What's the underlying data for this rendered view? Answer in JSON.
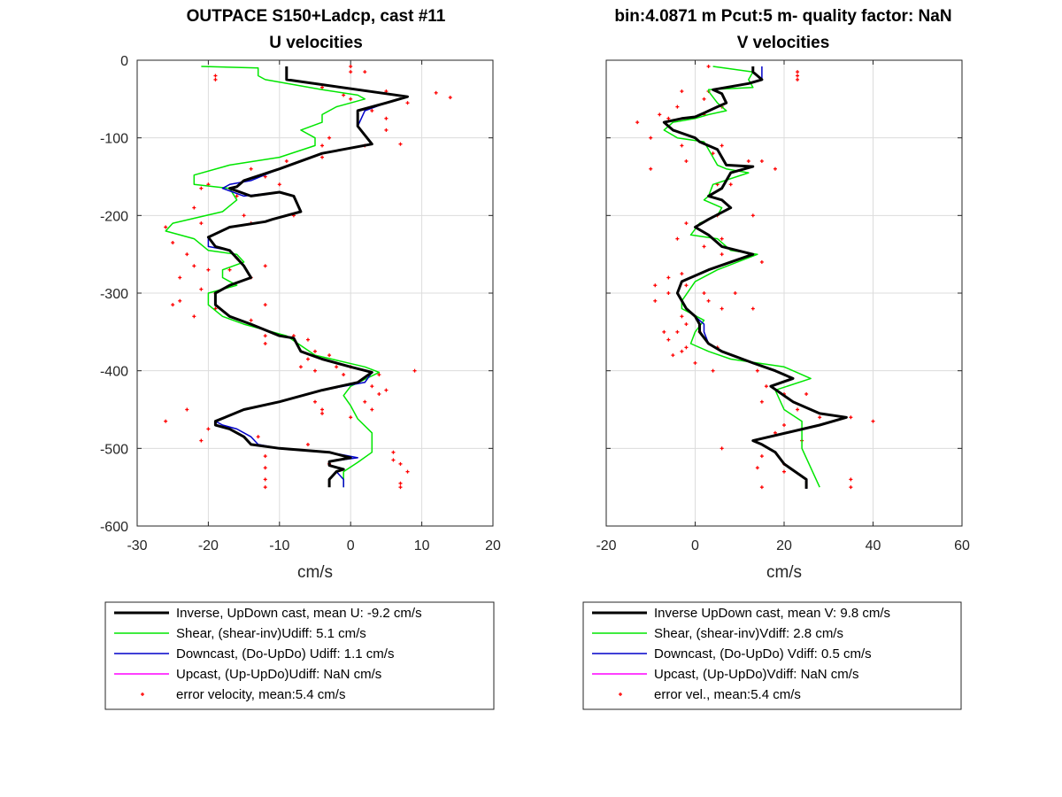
{
  "chart_data": [
    {
      "type": "line",
      "title": "OUTPACE S150+Ladcp, cast #11",
      "subtitle": "U velocities",
      "xlabel": "cm/s",
      "ylabel": "",
      "xlim": [
        -30,
        20
      ],
      "ylim": [
        -600,
        0
      ],
      "xticks": [
        "-30",
        "-20",
        "-10",
        "0",
        "10",
        "20"
      ],
      "yticks": [
        "0",
        "-100",
        "-200",
        "-300",
        "-400",
        "-500",
        "-600"
      ],
      "grid": true,
      "legend_position": "below",
      "series": [
        {
          "name": "Inverse, UpDown cast, mean U:  -9.2 cm/s",
          "color": "#000000",
          "width": 3,
          "x": [
            -9,
            -9,
            8,
            5,
            1,
            1,
            3,
            -4,
            -10,
            -15,
            -16,
            -17,
            -14,
            -10,
            -8,
            -7,
            -11,
            -12,
            -17,
            -20,
            -19,
            -17,
            -16,
            -15,
            -14,
            -17,
            -19,
            -19,
            -17,
            -14,
            -10,
            -8,
            -7,
            -4,
            0,
            3,
            1,
            -4,
            -10,
            -15,
            -19,
            -19,
            -17,
            -15,
            -14,
            -10,
            -3,
            0,
            -3,
            -3,
            -1,
            -2,
            -3,
            -3
          ],
          "y": [
            -8,
            -25,
            -47,
            -55,
            -65,
            -85,
            -108,
            -120,
            -140,
            -155,
            -163,
            -165,
            -175,
            -170,
            -175,
            -195,
            -205,
            -208,
            -215,
            -228,
            -240,
            -245,
            -255,
            -265,
            -280,
            -290,
            -300,
            -315,
            -330,
            -340,
            -355,
            -358,
            -375,
            -385,
            -395,
            -402,
            -415,
            -425,
            -440,
            -450,
            -465,
            -470,
            -475,
            -485,
            -495,
            -500,
            -505,
            -512,
            -517,
            -522,
            -527,
            -530,
            -540,
            -550
          ]
        },
        {
          "name": "Shear, (shear-inv)Udiff:  5.1 cm/s",
          "color": "#00e600",
          "width": 1.5,
          "x": [
            -21,
            -13,
            -13,
            -12,
            -4,
            1,
            2,
            -2,
            -4,
            -4,
            -7,
            -5,
            -5,
            -10,
            -17,
            -22,
            -22,
            -17,
            -16,
            -18,
            -25,
            -26,
            -22,
            -20,
            -16,
            -15,
            -18,
            -18,
            -16,
            -20,
            -20,
            -18,
            -15,
            -9,
            -5,
            2,
            4,
            0,
            -1,
            0,
            1,
            3,
            3,
            1,
            -1,
            -1,
            -1
          ],
          "y": [
            -8,
            -10,
            -20,
            -25,
            -38,
            -45,
            -50,
            -60,
            -70,
            -80,
            -90,
            -100,
            -110,
            -125,
            -135,
            -148,
            -160,
            -165,
            -180,
            -195,
            -210,
            -220,
            -230,
            -245,
            -250,
            -260,
            -270,
            -280,
            -290,
            -300,
            -315,
            -330,
            -340,
            -355,
            -380,
            -395,
            -402,
            -420,
            -432,
            -445,
            -462,
            -480,
            -505,
            -518,
            -530,
            -540,
            -550
          ]
        },
        {
          "name": "Downcast, (Do-UpDo) Udiff:  1.1 cm/s",
          "color": "#0000c8",
          "width": 1.5,
          "x": [
            -9,
            -9,
            8,
            5,
            2,
            1,
            3,
            -4,
            -10,
            -14,
            -17,
            -18,
            -15,
            -10,
            -8,
            -7,
            -11,
            -12,
            -17,
            -20,
            -20,
            -17,
            -16,
            -15,
            -14,
            -17,
            -19,
            -19,
            -17,
            -14,
            -10,
            -8,
            -7,
            -4,
            0,
            3,
            2,
            -4,
            -10,
            -15,
            -19,
            -18,
            -16,
            -14,
            -13,
            -10,
            -3,
            1,
            -3,
            -3,
            -1,
            -2,
            -1,
            -1
          ],
          "y": [
            -8,
            -25,
            -47,
            -55,
            -65,
            -85,
            -108,
            -120,
            -140,
            -155,
            -160,
            -165,
            -175,
            -170,
            -175,
            -195,
            -205,
            -208,
            -215,
            -228,
            -240,
            -245,
            -255,
            -265,
            -280,
            -290,
            -300,
            -315,
            -330,
            -340,
            -355,
            -358,
            -375,
            -385,
            -395,
            -402,
            -415,
            -425,
            -440,
            -450,
            -465,
            -470,
            -475,
            -485,
            -495,
            -500,
            -505,
            -512,
            -517,
            -522,
            -527,
            -530,
            -540,
            -550
          ]
        },
        {
          "name": "Upcast, (Up-UpDo)Udiff:  NaN cm/s",
          "color": "#ff00ff",
          "width": 1.5,
          "x": [],
          "y": []
        },
        {
          "name": "error velocity, mean:5.4 cm/s",
          "color": "#ff0000",
          "marker": "dot",
          "x": [
            0,
            0,
            -19,
            -19,
            2,
            -4,
            -1,
            0,
            5,
            12,
            14,
            3,
            5,
            5,
            8,
            -3,
            -4,
            2,
            7,
            -4,
            -9,
            -14,
            -12,
            -10,
            -20,
            -21,
            -16,
            -22,
            -15,
            -8,
            -14,
            -21,
            -26,
            -25,
            -23,
            -22,
            -16,
            -17,
            -12,
            -20,
            -14,
            -24,
            -21,
            -19,
            -24,
            -25,
            -19,
            -12,
            -22,
            -14,
            -12,
            -8,
            -6,
            -12,
            -5,
            -3,
            -6,
            -2,
            -7,
            -5,
            0,
            -1,
            4,
            3,
            5,
            9,
            4,
            2,
            3,
            -4,
            -5,
            -4,
            0,
            -23,
            -26,
            -20,
            -21,
            -13,
            -6,
            -12,
            -3,
            6,
            -12,
            6,
            7,
            8,
            -12,
            7,
            -12,
            7
          ],
          "y": [
            -8,
            -15,
            -20,
            -25,
            -15,
            -35,
            -45,
            -50,
            -40,
            -42,
            -48,
            -65,
            -75,
            -90,
            -55,
            -100,
            -110,
            -110,
            -108,
            -125,
            -130,
            -140,
            -150,
            -160,
            -160,
            -165,
            -175,
            -190,
            -200,
            -200,
            -210,
            -210,
            -215,
            -235,
            -250,
            -265,
            -255,
            -270,
            -265,
            -270,
            -280,
            -280,
            -295,
            -300,
            -310,
            -315,
            -320,
            -315,
            -330,
            -335,
            -355,
            -355,
            -360,
            -365,
            -375,
            -380,
            -385,
            -395,
            -395,
            -400,
            -395,
            -405,
            -405,
            -420,
            -425,
            -400,
            -430,
            -440,
            -450,
            -450,
            -440,
            -455,
            -460,
            -450,
            -465,
            -475,
            -490,
            -485,
            -495,
            -510,
            -520,
            -505,
            -525,
            -515,
            -520,
            -530,
            -540,
            -545,
            -550,
            -550
          ]
        }
      ]
    },
    {
      "type": "line",
      "title": "bin:4.0871 m  Pcut:5 m- quality factor:  NaN",
      "subtitle": "V velocities",
      "xlabel": "cm/s",
      "ylabel": "",
      "xlim": [
        -20,
        60
      ],
      "ylim": [
        -600,
        0
      ],
      "xticks": [
        "-20",
        "0",
        "20",
        "40",
        "60"
      ],
      "yticks": [],
      "grid": true,
      "legend_position": "below",
      "series": [
        {
          "name": "Inverse UpDown cast, mean V:  9.8 cm/s",
          "color": "#000000",
          "width": 3,
          "x": [
            13,
            13,
            15,
            12,
            4,
            6,
            7,
            5,
            2,
            0,
            -3,
            -7,
            -5,
            0,
            1,
            5,
            7,
            13,
            8,
            6,
            3,
            6,
            8,
            3,
            0,
            3,
            6,
            13,
            3,
            -3,
            -4,
            -2,
            0,
            1,
            1,
            3,
            6,
            13,
            18,
            22,
            17,
            22,
            28,
            34,
            28,
            13,
            15,
            18,
            20,
            25,
            25
          ],
          "y": [
            -8,
            -15,
            -25,
            -30,
            -38,
            -43,
            -55,
            -60,
            -68,
            -73,
            -75,
            -80,
            -90,
            -100,
            -105,
            -115,
            -135,
            -137,
            -145,
            -165,
            -175,
            -180,
            -190,
            -205,
            -215,
            -225,
            -240,
            -250,
            -270,
            -285,
            -300,
            -320,
            -330,
            -340,
            -350,
            -365,
            -375,
            -390,
            -400,
            -410,
            -420,
            -440,
            -455,
            -460,
            -470,
            -490,
            -495,
            -505,
            -520,
            -540,
            -552
          ]
        },
        {
          "name": "Shear, (shear-inv)Vdiff:  2.8 cm/s",
          "color": "#00e600",
          "width": 1.5,
          "x": [
            4,
            13,
            12,
            13,
            3,
            3,
            5,
            7,
            3,
            0,
            -5,
            -7,
            -4,
            2,
            3,
            5,
            7,
            12,
            4,
            3,
            2,
            6,
            5,
            1,
            -1,
            5,
            8,
            14,
            5,
            0,
            -3,
            -3,
            2,
            0,
            -1,
            3,
            8,
            20,
            26,
            18,
            20,
            24,
            24,
            28
          ],
          "y": [
            -8,
            -15,
            -25,
            -35,
            -38,
            -40,
            -55,
            -65,
            -70,
            -75,
            -80,
            -90,
            -100,
            -105,
            -115,
            -135,
            -140,
            -145,
            -160,
            -175,
            -180,
            -190,
            -200,
            -210,
            -225,
            -230,
            -245,
            -250,
            -270,
            -285,
            -310,
            -320,
            -335,
            -350,
            -365,
            -375,
            -385,
            -395,
            -410,
            -425,
            -450,
            -465,
            -500,
            -550
          ]
        },
        {
          "name": "Downcast, (Do-UpDo) Vdiff:  0.5 cm/s",
          "color": "#0000c8",
          "width": 1.5,
          "x": [
            15,
            15,
            15,
            12,
            4,
            6,
            7,
            5,
            2,
            0,
            -3,
            -7,
            -5,
            0,
            1,
            5,
            7,
            13,
            8,
            6,
            3,
            6,
            8,
            3,
            0,
            3,
            6,
            13,
            3,
            -3,
            -4,
            -2,
            0,
            2,
            2,
            3,
            6,
            13,
            18,
            22,
            17,
            22,
            28,
            34,
            28,
            13,
            15,
            18,
            20,
            25,
            25
          ],
          "y": [
            -8,
            -15,
            -25,
            -30,
            -38,
            -43,
            -55,
            -60,
            -68,
            -73,
            -75,
            -80,
            -90,
            -100,
            -105,
            -115,
            -135,
            -137,
            -145,
            -165,
            -175,
            -180,
            -190,
            -205,
            -215,
            -225,
            -240,
            -250,
            -270,
            -285,
            -300,
            -320,
            -330,
            -340,
            -350,
            -365,
            -375,
            -390,
            -400,
            -410,
            -420,
            -440,
            -455,
            -460,
            -470,
            -490,
            -495,
            -505,
            -520,
            -540,
            -552
          ]
        },
        {
          "name": "Upcast, (Up-UpDo)Vdiff:  NaN cm/s",
          "color": "#ff00ff",
          "width": 1.5,
          "x": [],
          "y": []
        },
        {
          "name": "error vel., mean:5.4 cm/s",
          "color": "#ff0000",
          "marker": "dot",
          "x": [
            3,
            23,
            23,
            23,
            3,
            -3,
            2,
            6,
            -13,
            -8,
            -6,
            -4,
            2,
            -10,
            -3,
            4,
            -2,
            6,
            -10,
            12,
            5,
            15,
            8,
            18,
            5,
            13,
            -2,
            6,
            -4,
            2,
            6,
            15,
            -6,
            -2,
            2,
            -3,
            9,
            3,
            6,
            13,
            -9,
            -6,
            -3,
            -9,
            -7,
            -2,
            1,
            -2,
            -5,
            -3,
            5,
            0,
            -4,
            -6,
            4,
            14,
            20,
            25,
            16,
            15,
            23,
            28,
            20,
            18,
            24,
            35,
            40,
            6,
            15,
            20,
            14,
            20,
            35,
            15,
            35
          ],
          "y": [
            -8,
            -15,
            -20,
            -25,
            -40,
            -40,
            -50,
            -60,
            -80,
            -70,
            -75,
            -60,
            -70,
            -100,
            -110,
            -120,
            -130,
            -110,
            -140,
            -130,
            -160,
            -130,
            -160,
            -140,
            -200,
            -200,
            -210,
            -230,
            -230,
            -240,
            -250,
            -260,
            -280,
            -290,
            -300,
            -275,
            -300,
            -310,
            -320,
            -320,
            -290,
            -300,
            -330,
            -310,
            -350,
            -340,
            -350,
            -370,
            -380,
            -375,
            -370,
            -390,
            -350,
            -360,
            -400,
            -400,
            -430,
            -430,
            -420,
            -440,
            -450,
            -460,
            -470,
            -480,
            -490,
            -460,
            -465,
            -500,
            -510,
            -520,
            -525,
            -530,
            -540,
            -550,
            -550
          ]
        }
      ]
    }
  ]
}
